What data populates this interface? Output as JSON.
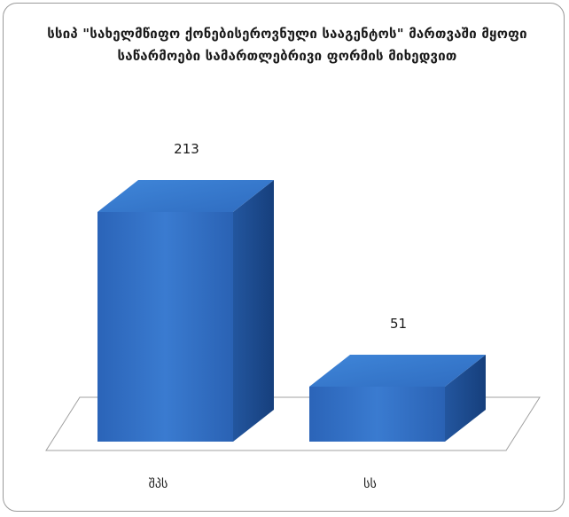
{
  "chart_data": {
    "type": "bar",
    "title": "სსიპ \"სახელმწიფო ქონებისეროვნული სააგენტოს\" მართვაში მყოფი საწარმოები სამართლებრივი ფორმის მიხედვით",
    "categories": [
      "შპს",
      "სს"
    ],
    "values": [
      213,
      51
    ],
    "data_labels": [
      "213",
      "51"
    ],
    "ylim": [
      0,
      213
    ],
    "grid": false,
    "legend": "none",
    "xlabel": "",
    "ylabel": "",
    "colors": {
      "bar_front": "#2e6ec4",
      "bar_top": "#3f86d9",
      "bar_side": "#1c4a8e",
      "floor_line": "#9a9a9a"
    }
  }
}
